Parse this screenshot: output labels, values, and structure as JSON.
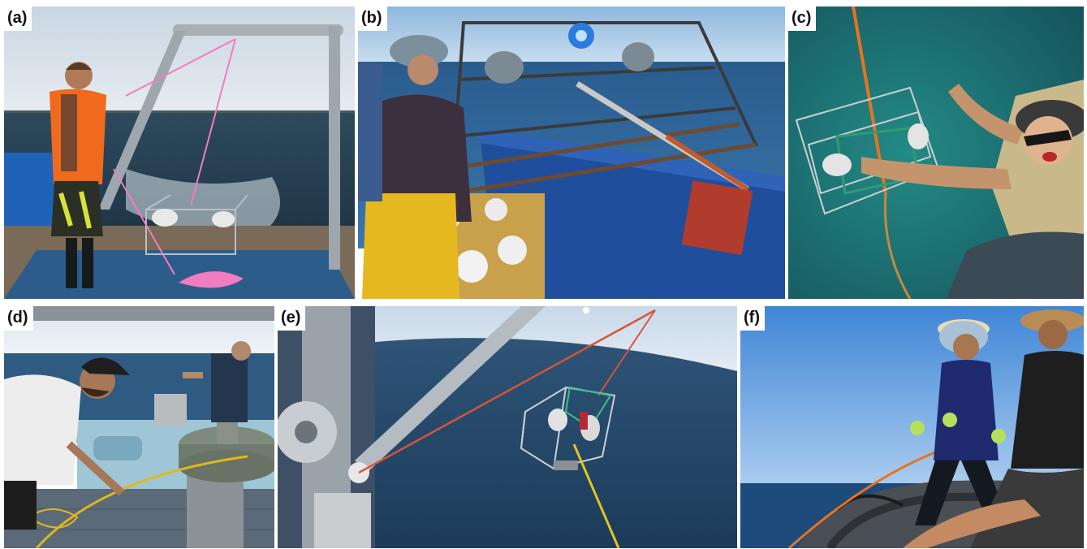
{
  "panels": [
    {
      "label": "(a)",
      "scene": "crew member in orange life vest deploying a camera frame from a boat deck with pink rope under a steel A-frame"
    },
    {
      "label": "(b)",
      "scene": "fisher in yellow overalls handling a rectangular metal camera frame with lights over the side of a blue vessel"
    },
    {
      "label": "(c)",
      "scene": "smiling person in a hat reaching toward a wire camera frame lowered on orange rope into turquoise water"
    },
    {
      "label": "(d)",
      "scene": "two crew members on a vessel deck with a capstan winch and yellow rope"
    },
    {
      "label": "(e)",
      "scene": "camera frame with green netting suspended from a davit arm over dark blue sea"
    },
    {
      "label": "(f)",
      "scene": "two people in an inflatable boat hauling an orange rope under a blue sky"
    }
  ],
  "colors": {
    "sea_dark": "#22405a",
    "sea_turquoise": "#1c6b6a",
    "sky": "#b9d3ea",
    "deck_blue": "#1f4f9c",
    "vest_orange": "#f06a1e",
    "rope_pink": "#f27cc0",
    "rope_orange": "#e8731e",
    "metal": "#a9b2b8"
  }
}
